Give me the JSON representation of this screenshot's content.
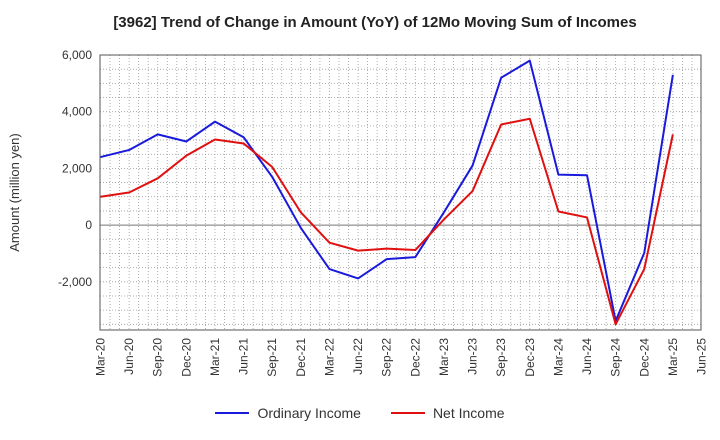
{
  "chart_data": {
    "type": "line",
    "title": "[3962]  Trend of Change in Amount (YoY) of 12Mo Moving Sum of Incomes",
    "xlabel": "",
    "ylabel": "Amount (million yen)",
    "categories": [
      "Mar-20",
      "Jun-20",
      "Sep-20",
      "Dec-20",
      "Mar-21",
      "Jun-21",
      "Sep-21",
      "Dec-21",
      "Mar-22",
      "Jun-22",
      "Sep-22",
      "Dec-22",
      "Mar-23",
      "Jun-23",
      "Sep-23",
      "Dec-23",
      "Mar-24",
      "Jun-24",
      "Sep-24",
      "Dec-24",
      "Mar-25",
      "Jun-25"
    ],
    "ylim": [
      -3700,
      6000
    ],
    "yticks": [
      6000,
      4000,
      2000,
      0,
      -2000
    ],
    "ytick_labels": [
      "6,000",
      "4,000",
      "2,000",
      "0",
      "-2,000"
    ],
    "grid": true,
    "legend_position": "bottom",
    "series": [
      {
        "name": "Ordinary Income",
        "color": "#1a1adb",
        "values": [
          2400,
          2650,
          3200,
          2950,
          3650,
          3100,
          1700,
          -100,
          -1550,
          -1880,
          -1200,
          -1130,
          450,
          2100,
          5200,
          5800,
          1780,
          1760,
          -3380,
          -980,
          5300,
          null
        ]
      },
      {
        "name": "Net Income",
        "color": "#e01010",
        "values": [
          1000,
          1150,
          1650,
          2450,
          3020,
          2880,
          2050,
          450,
          -620,
          -900,
          -830,
          -880,
          200,
          1200,
          3550,
          3750,
          480,
          270,
          -3500,
          -1550,
          3200,
          null
        ]
      }
    ]
  }
}
